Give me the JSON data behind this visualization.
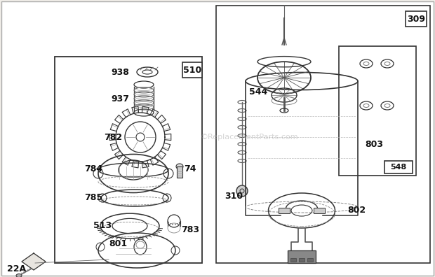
{
  "bg_color": "#f0ede8",
  "border_color": "#555555",
  "text_color": "#111111",
  "watermark": "©ReplacementParts.com",
  "fig_w": 6.2,
  "fig_h": 3.96,
  "dpi": 100
}
